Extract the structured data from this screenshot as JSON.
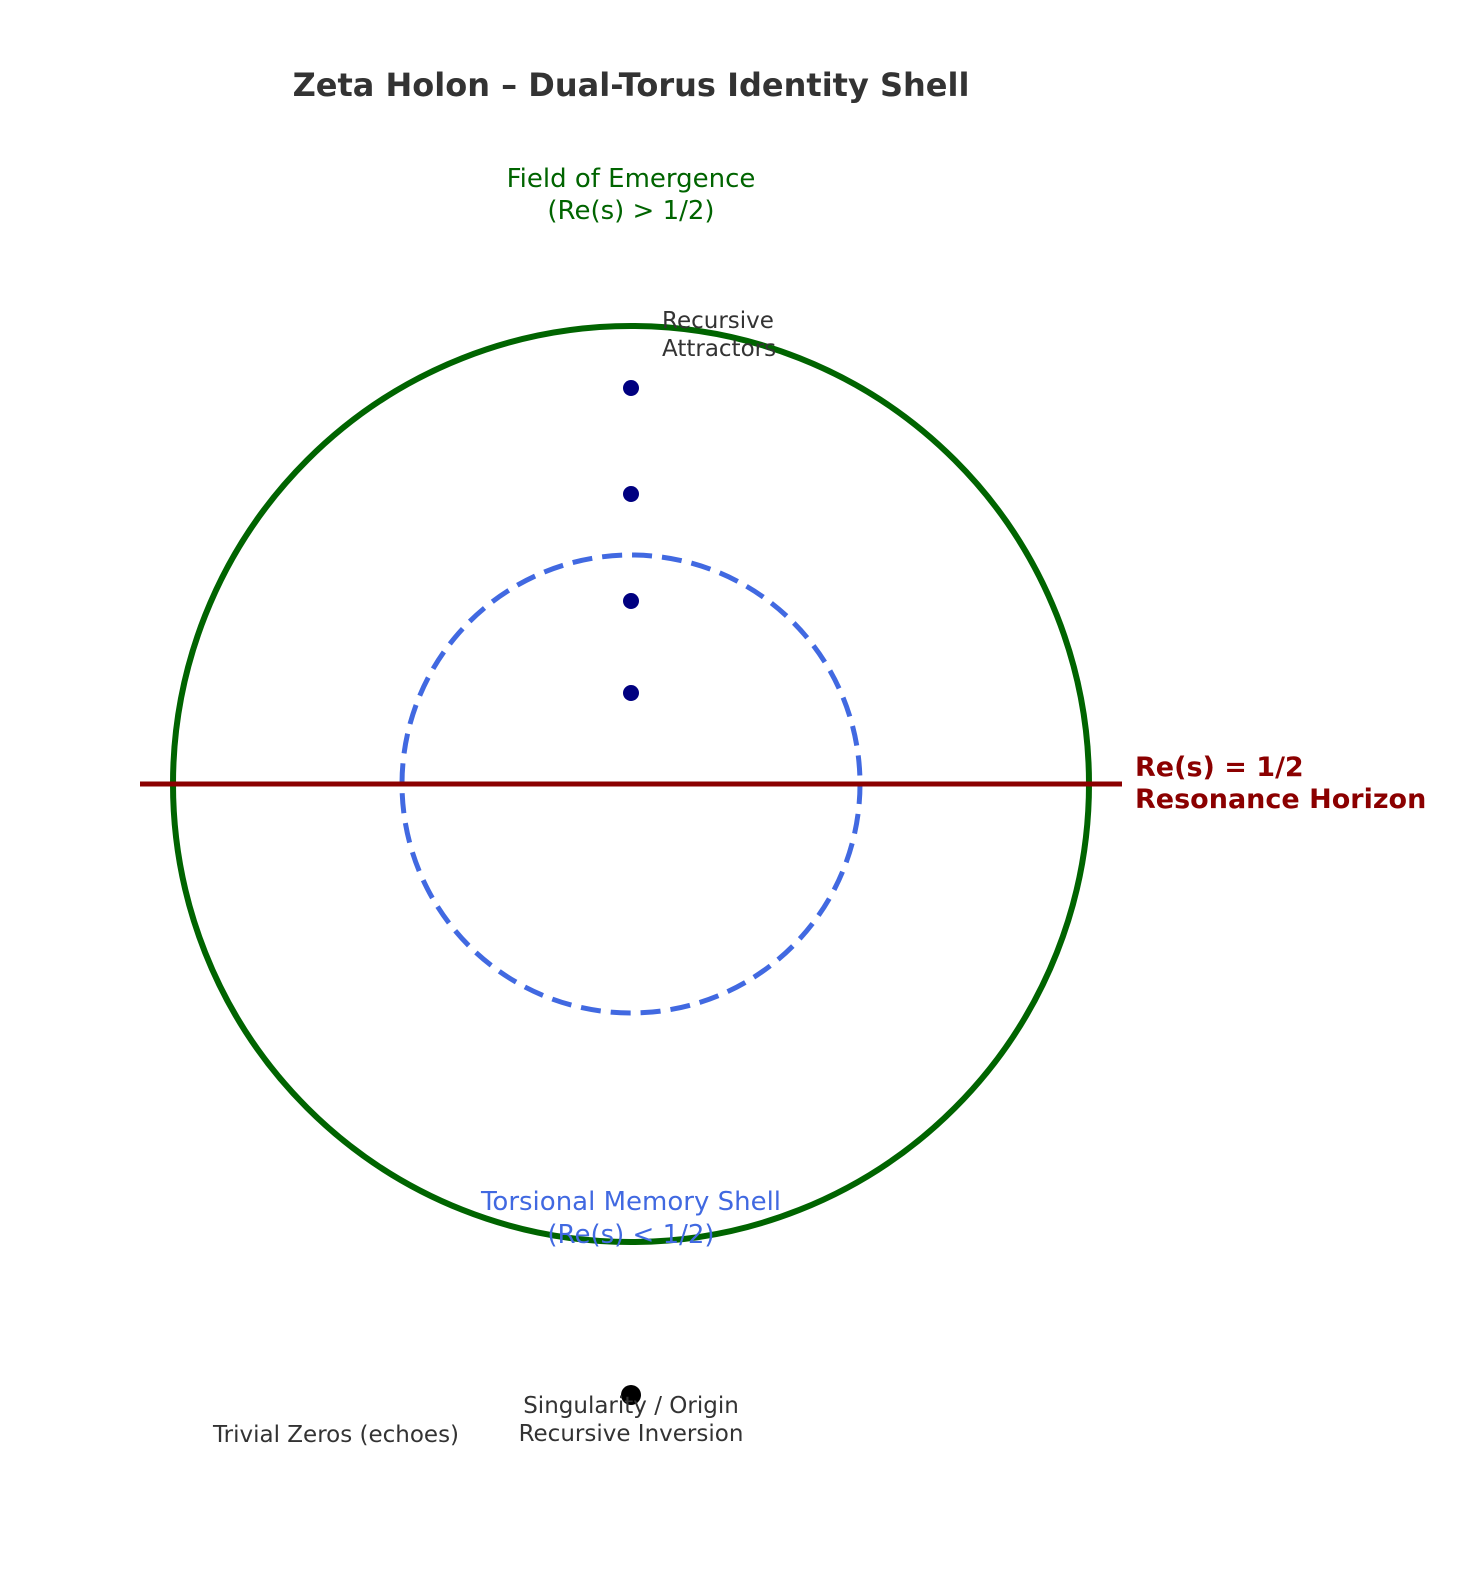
{
  "title": "Zeta Holon – Dual-Torus Identity Shell",
  "emergence": {
    "line1": "Field of Emergence",
    "line2": "(Re(s) > 1/2)"
  },
  "attractors": {
    "line1": "Recursive",
    "line2": "Attractors",
    "count": 4
  },
  "horizon": {
    "line1": "Re(s) = 1/2",
    "line2": "Resonance Horizon"
  },
  "memory_shell": {
    "line1": "Torsional Memory Shell",
    "line2": "(Re(s) < 1/2)"
  },
  "singularity": {
    "line1": "Singularity / Origin",
    "line2": "Recursive Inversion"
  },
  "trivial_zeros": {
    "label": "Trivial Zeros (echoes)"
  },
  "colors": {
    "title": "#333333",
    "text": "#333333",
    "outer_torus": "#006400",
    "inner_torus": "#4169e1",
    "horizon": "#8b0000",
    "attractor_dot": "#000080",
    "singularity_dot": "#000000"
  }
}
